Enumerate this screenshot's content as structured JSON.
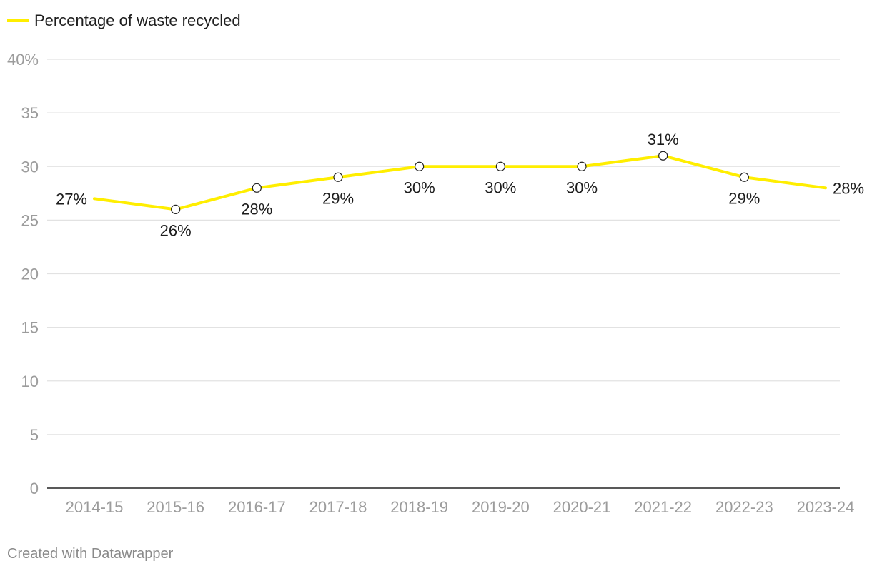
{
  "chart_data": {
    "type": "line",
    "title": "",
    "legend": "top-left",
    "categories": [
      "2014-15",
      "2015-16",
      "2016-17",
      "2017-18",
      "2018-19",
      "2019-20",
      "2020-21",
      "2021-22",
      "2022-23",
      "2023-24"
    ],
    "series": [
      {
        "name": "Percentage of waste recycled",
        "color": "#ffee00",
        "values": [
          27,
          26,
          28,
          29,
          30,
          30,
          30,
          31,
          29,
          28
        ],
        "labels": [
          "27%",
          "26%",
          "28%",
          "29%",
          "30%",
          "30%",
          "30%",
          "31%",
          "29%",
          "28%"
        ]
      }
    ],
    "ylim": [
      0,
      40
    ],
    "yticks": [
      0,
      5,
      10,
      15,
      20,
      25,
      30,
      35,
      40
    ],
    "ytick_labels": [
      "0",
      "5",
      "10",
      "15",
      "20",
      "25",
      "30",
      "35",
      "40%"
    ],
    "grid": true,
    "xlabel": "",
    "ylabel": ""
  },
  "footer": {
    "credit": "Created with Datawrapper"
  },
  "colors": {
    "line": "#ffee00",
    "grid": "#e2e2e2",
    "axis": "#222222",
    "tick_text": "#9c9c9c",
    "label_text": "#1d1d1d"
  }
}
